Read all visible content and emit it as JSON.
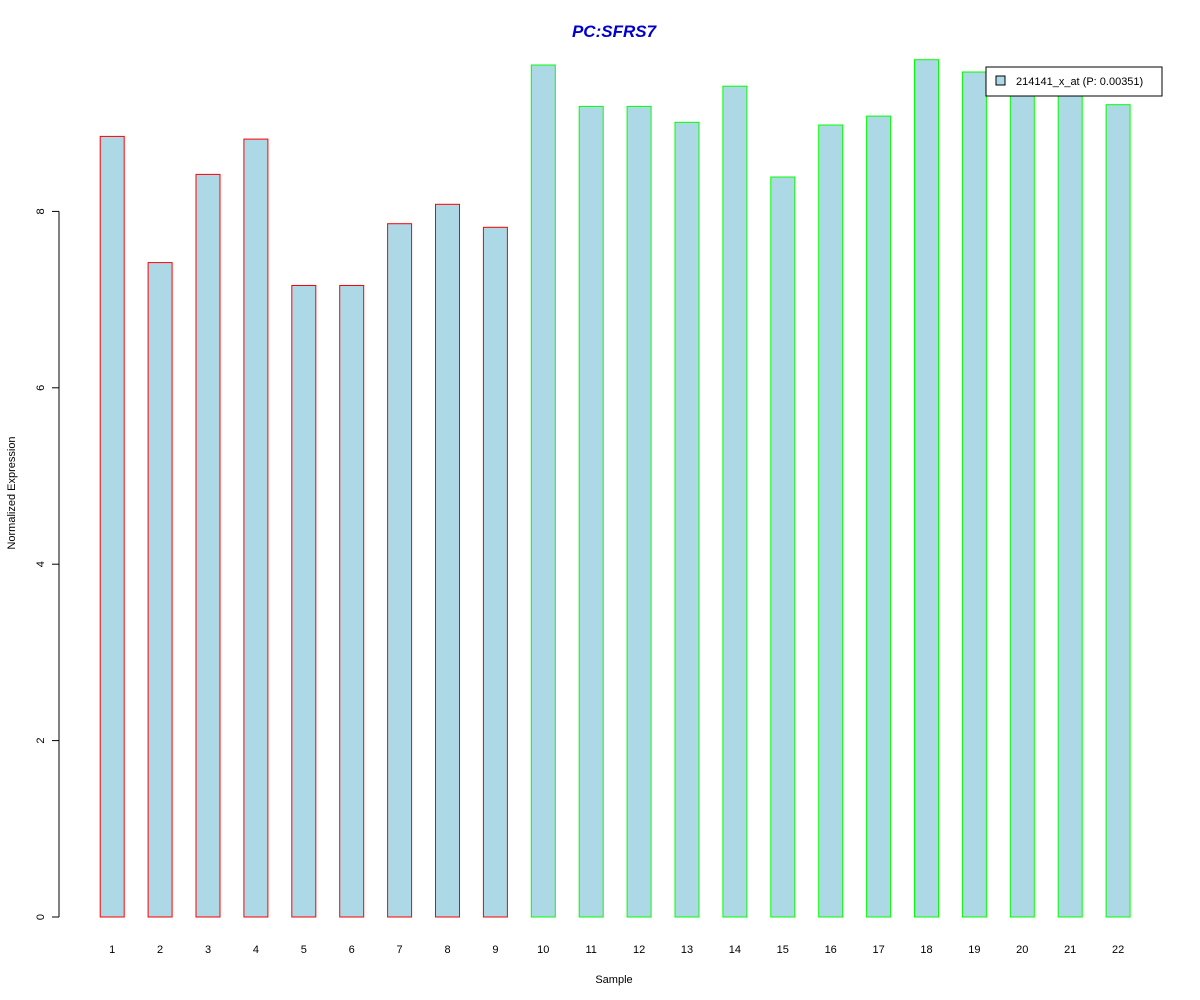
{
  "chart_data": {
    "type": "bar",
    "title": "PC:SFRS7",
    "xlabel": "Sample",
    "ylabel": "Normalized Expression",
    "ylim": [
      0,
      10
    ],
    "yticks": [
      0,
      2,
      4,
      6,
      8
    ],
    "categories": [
      "1",
      "2",
      "3",
      "4",
      "5",
      "6",
      "7",
      "8",
      "9",
      "10",
      "11",
      "12",
      "13",
      "14",
      "15",
      "16",
      "17",
      "18",
      "19",
      "20",
      "21",
      "22"
    ],
    "series": [
      {
        "name": "214141_x_at (P: 0.00351)",
        "values": [
          8.85,
          7.42,
          8.42,
          8.82,
          7.16,
          7.16,
          7.86,
          8.08,
          7.82,
          9.66,
          9.19,
          9.19,
          9.01,
          9.42,
          8.39,
          8.98,
          9.08,
          9.72,
          9.58,
          9.5,
          9.46,
          9.21
        ]
      }
    ],
    "bar_fill": "#add8e6",
    "group_border_colors": [
      "#ff0000",
      "#ff0000",
      "#ff0000",
      "#ff0000",
      "#ff0000",
      "#ff0000",
      "#ff0000",
      "#ff0000",
      "#ff0000",
      "#00ff00",
      "#00ff00",
      "#00ff00",
      "#00ff00",
      "#00ff00",
      "#00ff00",
      "#00ff00",
      "#00ff00",
      "#00ff00",
      "#00ff00",
      "#00ff00",
      "#00ff00",
      "#00ff00"
    ],
    "title_color": "#0000cc",
    "legend_position": "top-right",
    "grid": false
  }
}
